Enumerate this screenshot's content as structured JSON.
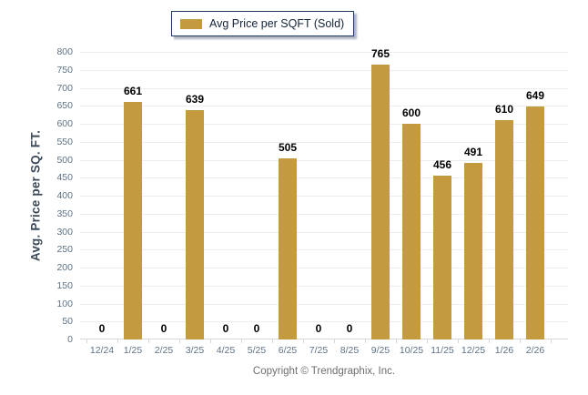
{
  "chart_data": {
    "type": "bar",
    "title": "Avg Price per SQFT (Sold)",
    "legend": "Avg Price per SQFT (Sold)",
    "legend_position": "top-center",
    "categories": [
      "12/24",
      "1/25",
      "2/25",
      "3/25",
      "4/25",
      "5/25",
      "6/25",
      "7/25",
      "8/25",
      "9/25",
      "10/25",
      "11/25",
      "12/25",
      "1/26",
      "2/26"
    ],
    "values": [
      0,
      661,
      0,
      639,
      0,
      0,
      505,
      0,
      0,
      765,
      600,
      456,
      491,
      610,
      649
    ],
    "xlabel": "",
    "ylabel": "Avg. Price per SQ. FT.",
    "ylim": [
      0,
      800
    ],
    "ytick_step": 50,
    "grid": true,
    "bar_color": "#C49A3F"
  },
  "footer": {
    "copyright": "Copyright © Trendgraphix, Inc."
  },
  "colors": {
    "bar": "#C49A3F",
    "legend_border": "#1F3864",
    "legend_text": "#13233A",
    "grid": "#EDEDED",
    "axis": "#D6D6D6",
    "tick_label": "#5E7286",
    "value_label": "#000000",
    "ylabel_text": "#3B4A59",
    "copyright_text": "#6E6E6E"
  }
}
